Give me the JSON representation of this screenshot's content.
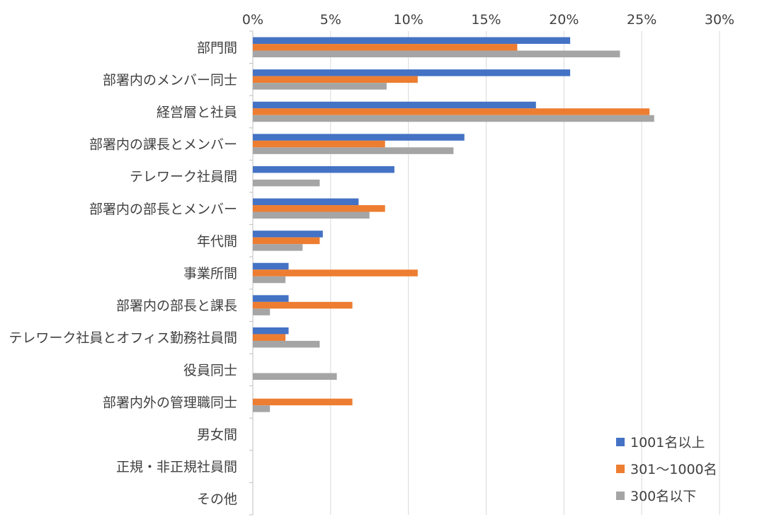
{
  "chart_data": {
    "type": "bar",
    "orientation": "horizontal",
    "categories": [
      "部門間",
      "部署内のメンバー同士",
      "経営層と社員",
      "部署内の課長とメンバー",
      "テレワーク社員間",
      "部署内の部長とメンバー",
      "年代間",
      "事業所間",
      "部署内の部長と課長",
      "テレワーク社員とオフィス勤務社員間",
      "役員同士",
      "部署内外の管理職同士",
      "男女間",
      "正規・非正規社員間",
      "その他"
    ],
    "series": [
      {
        "name": "1001名以上",
        "color": "#4472c4",
        "values": [
          20.4,
          20.4,
          18.2,
          13.6,
          9.1,
          6.8,
          4.5,
          2.3,
          2.3,
          2.3,
          0,
          0,
          0,
          0,
          0
        ]
      },
      {
        "name": "301～1000名",
        "color": "#ed7d31",
        "values": [
          17.0,
          10.6,
          25.5,
          8.5,
          0,
          8.5,
          4.3,
          10.6,
          6.4,
          2.1,
          0,
          6.4,
          0,
          0,
          0
        ]
      },
      {
        "name": "300名以下",
        "color": "#a5a5a5",
        "values": [
          23.6,
          8.6,
          25.8,
          12.9,
          4.3,
          7.5,
          3.2,
          2.1,
          1.1,
          4.3,
          5.4,
          1.1,
          0,
          0,
          0
        ]
      }
    ],
    "xlim": [
      0,
      30
    ],
    "xticks": [
      0,
      5,
      10,
      15,
      20,
      25,
      30
    ],
    "xtick_labels": [
      "0%",
      "5%",
      "10%",
      "15%",
      "20%",
      "25%",
      "30%"
    ],
    "xaxis_position": "top",
    "grid": true,
    "legend_position": "bottom-right",
    "title": "",
    "xlabel": "",
    "ylabel": ""
  }
}
